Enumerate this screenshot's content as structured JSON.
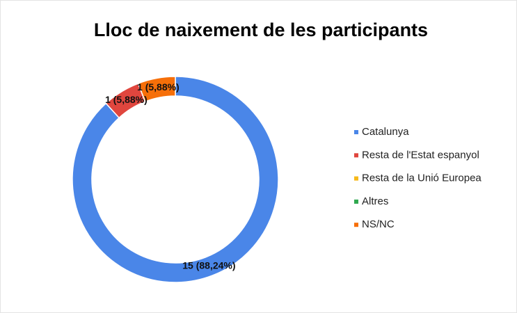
{
  "chart_data": {
    "type": "donut",
    "title": "Lloc de naixement de les participants",
    "categories": [
      "Catalunya",
      "Resta de l'Estat espanyol",
      "Resta de la Unió Europea",
      "Altres",
      "NS/NC"
    ],
    "values": [
      15,
      1,
      0,
      0,
      1
    ],
    "value_labels": [
      "15 (88,24%)",
      "1 (5,88%)",
      null,
      null,
      "1 (5,88%)"
    ],
    "colors": [
      "#4a86e8",
      "#e0463e",
      "#f6b91a",
      "#2fa84f",
      "#f66f09"
    ],
    "legend": "right"
  }
}
